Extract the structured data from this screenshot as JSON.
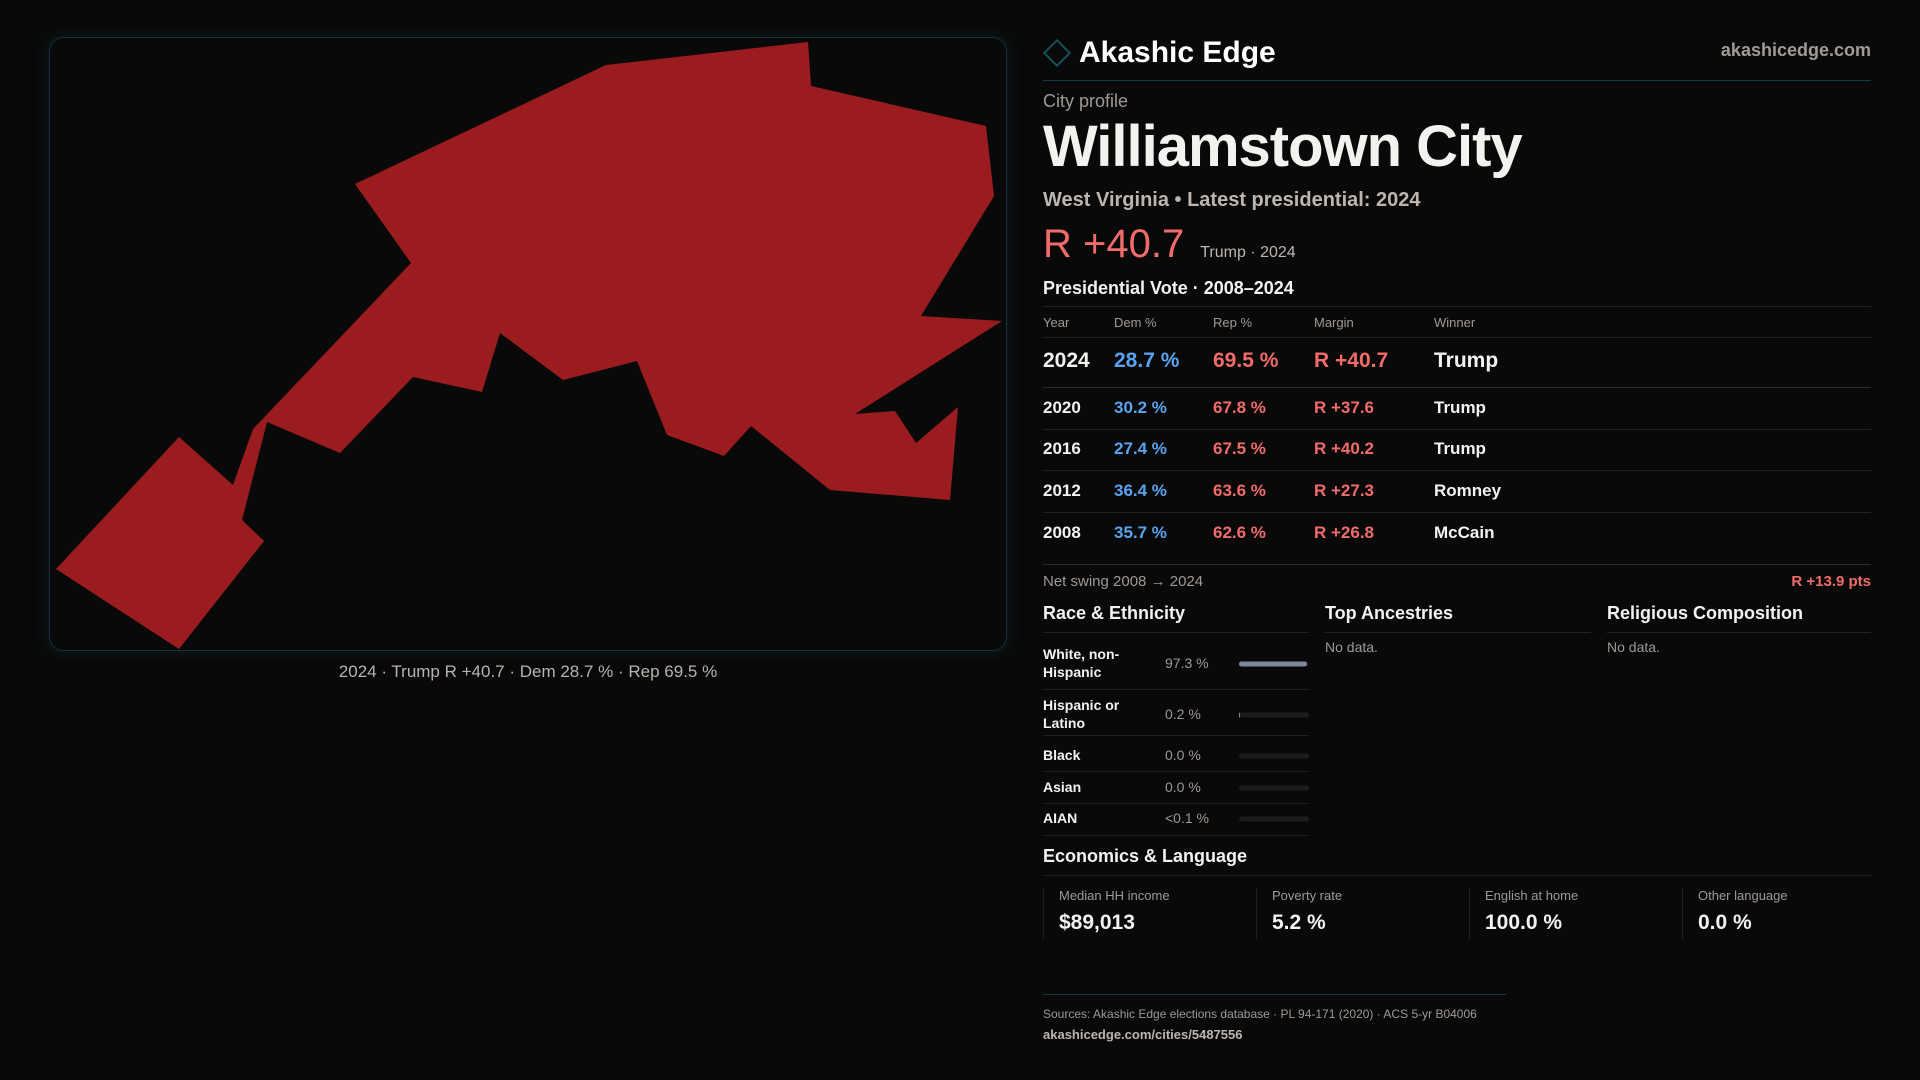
{
  "brand": {
    "name": "Akashic Edge",
    "site": "akashicedge.com",
    "logo_icon": "diamond-icon"
  },
  "profile": {
    "kicker": "City profile",
    "title": "Williamstown City",
    "subtitle": "West Virginia • Latest presidential: 2024",
    "margin": "R +40.7",
    "margin_sub": "Trump · 2024"
  },
  "map": {
    "caption": "2024 · Trump R +40.7 · Dem 28.7 % · Rep 69.5 %",
    "fill": "#9b1c1f"
  },
  "colors": {
    "rep": "#f26b6b",
    "dem": "#5aa3f0",
    "background": "#0a0909"
  },
  "vote": {
    "title": "Presidential Vote · 2008–2024",
    "headers": [
      "Year",
      "Dem %",
      "Rep %",
      "Margin",
      "Winner"
    ],
    "rows": [
      [
        "2024",
        "28.7 %",
        "69.5 %",
        "R +40.7",
        "Trump"
      ],
      [
        "2020",
        "30.2 %",
        "67.8 %",
        "R +37.6",
        "Trump"
      ],
      [
        "2016",
        "27.4 %",
        "67.5 %",
        "R +40.2",
        "Trump"
      ],
      [
        "2012",
        "36.4 %",
        "63.6 %",
        "R +27.3",
        "Romney"
      ],
      [
        "2008",
        "35.7 %",
        "62.6 %",
        "R +26.8",
        "McCain"
      ]
    ],
    "swing_label": "Net swing 2008 → 2024",
    "swing_value": "R +13.9 pts"
  },
  "race": {
    "title": "Race & Ethnicity",
    "rows": [
      {
        "name": "White, non-Hispanic",
        "value": "97.3 %",
        "pct": 97.3
      },
      {
        "name": "Hispanic or Latino",
        "value": "0.2 %",
        "pct": 0.2
      },
      {
        "name": "Black",
        "value": "0.0 %",
        "pct": 0
      },
      {
        "name": "Asian",
        "value": "0.0 %",
        "pct": 0
      },
      {
        "name": "AIAN",
        "value": "<0.1 %",
        "pct": 0.05
      }
    ]
  },
  "ancestries": {
    "title": "Top Ancestries",
    "empty": "No data."
  },
  "religion": {
    "title": "Religious Composition",
    "empty": "No data."
  },
  "econ": {
    "title": "Economics & Language",
    "stats": [
      {
        "label": "Median HH income",
        "value": "$89,013"
      },
      {
        "label": "Poverty rate",
        "value": "5.2 %"
      },
      {
        "label": "English at home",
        "value": "100.0 %"
      },
      {
        "label": "Other language",
        "value": "0.0 %"
      }
    ]
  },
  "footer": {
    "sources": "Sources: Akashic Edge elections database · PL 94-171 (2020) · ACS 5-yr B04006",
    "url": "akashicedge.com/cities/5487556"
  }
}
